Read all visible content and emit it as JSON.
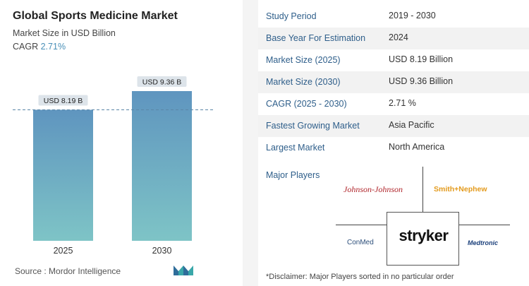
{
  "header": {
    "title": "Global Sports Medicine Market",
    "subtitle": "Market Size in USD Billion",
    "cagr_label": "CAGR",
    "cagr_value": "2.71%"
  },
  "chart_data": {
    "type": "bar",
    "categories": [
      "2025",
      "2030"
    ],
    "values": [
      8.19,
      9.36
    ],
    "data_labels": [
      "USD 8.19 B",
      "USD 9.36 B"
    ],
    "title": "Global Sports Medicine Market",
    "xlabel": "",
    "ylabel": "Market Size in USD Billion",
    "grid": false,
    "reference_line": 8.19
  },
  "source": "Source :  Mordor Intelligence",
  "summary_table": [
    {
      "label": "Study Period",
      "value": "2019 - 2030"
    },
    {
      "label": "Base Year For Estimation",
      "value": "2024"
    },
    {
      "label": "Market Size (2025)",
      "value": "USD 8.19 Billion"
    },
    {
      "label": "Market Size (2030)",
      "value": "USD 9.36 Billion"
    },
    {
      "label": "CAGR (2025 - 2030)",
      "value": "2.71 %"
    },
    {
      "label": "Fastest Growing Market",
      "value": "Asia Pacific"
    },
    {
      "label": "Largest Market",
      "value": "North America"
    }
  ],
  "players": {
    "label": "Major Players",
    "johnson": "Johnson-Johnson",
    "smith_nephew": "Smith+Nephew",
    "conmed": "ConMed",
    "stryker": "stryker",
    "medtronic": "Medtronic"
  },
  "disclaimer": "*Disclaimer: Major Players sorted in no particular order",
  "colors": {
    "bar_top": "#5f95bf",
    "bar_bottom": "#7ec4c6",
    "label_bg": "#dde4ea",
    "dash": "#5a86a8"
  }
}
